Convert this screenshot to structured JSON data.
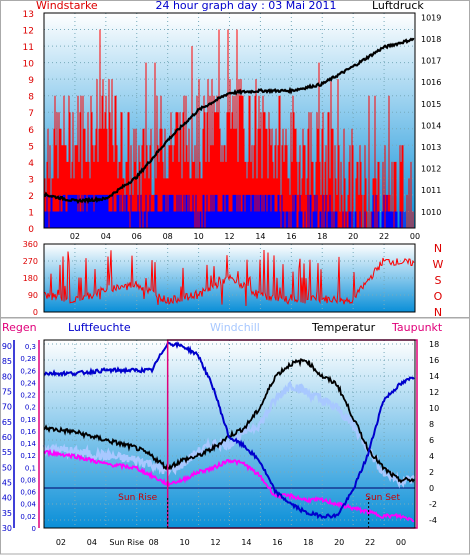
{
  "title": "24 hour graph day : 03 Mai 2011",
  "colors": {
    "wind": "#ff0000",
    "gust": "#0000ff",
    "pressure": "#000000",
    "dir": "#ff0000",
    "humidity": "#0000cc",
    "windchill": "#a8c8ff",
    "temperature": "#000000",
    "dewpoint": "#ff00ff",
    "rain": "#0000cc",
    "frame": "#e0007a"
  },
  "x_ticks": [
    "02",
    "04",
    "06",
    "08",
    "10",
    "12",
    "14",
    "16",
    "18",
    "20",
    "22",
    "00"
  ],
  "chart_data": [
    {
      "type": "line",
      "panel": "wind-pressure",
      "title": "24 hour graph day : 03 Mai 2011",
      "ylabel_left": "Windstarke",
      "ylabel_right": "Luftdruck",
      "y_left_ticks": [
        "0",
        "1",
        "2",
        "3",
        "4",
        "5",
        "6",
        "7",
        "8",
        "9",
        "10",
        "11",
        "12",
        "13"
      ],
      "y_right_ticks": [
        "1010",
        "1011",
        "1012",
        "1013",
        "1014",
        "1015",
        "1016",
        "1017",
        "1018",
        "1019"
      ],
      "ylim_left": [
        0,
        13
      ],
      "ylim_right": [
        1009.25,
        1019.2
      ],
      "x": [
        0,
        2,
        4,
        6,
        8,
        10,
        12,
        14,
        16,
        18,
        20,
        22,
        24
      ],
      "series": [
        {
          "name": "",
          "axis": "right",
          "values": [
            1010.8,
            1010.5,
            1010.6,
            1011.6,
            1013.3,
            1014.7,
            1015.5,
            1015.6,
            1015.6,
            1015.9,
            1016.7,
            1017.6,
            1018.0
          ]
        },
        {
          "name": "",
          "axis": "left",
          "values": [
            4,
            5,
            6,
            3,
            5,
            5,
            6,
            5,
            4,
            4,
            2,
            2,
            1
          ]
        },
        {
          "name": "",
          "axis": "left",
          "values": [
            1,
            2,
            2,
            1,
            2,
            1,
            2,
            2,
            1,
            1,
            0,
            1,
            0
          ]
        }
      ]
    },
    {
      "type": "line",
      "panel": "wind-direction",
      "y_ticks": [
        "0",
        "90",
        "180",
        "270",
        "360"
      ],
      "ylim": [
        0,
        360
      ],
      "direction_labels": [
        "N",
        "W",
        "S",
        "O",
        "N"
      ],
      "x": [
        0,
        2,
        4,
        6,
        8,
        10,
        12,
        14,
        16,
        18,
        20,
        22,
        24
      ],
      "series": [
        {
          "name": "",
          "values": [
            90,
            60,
            120,
            150,
            60,
            90,
            180,
            90,
            60,
            70,
            60,
            270,
            260
          ]
        }
      ]
    },
    {
      "type": "line",
      "panel": "temp-humidity",
      "legend": [
        "Regen",
        "Luftfeuchte",
        "Windchill",
        "Temperatur",
        "Taupunkt"
      ],
      "y_rain_ticks": [
        "0",
        "0,02",
        "0,04",
        "0,06",
        "0,08",
        "0,1",
        "0,12",
        "0,14",
        "0,16",
        "0,18",
        "0,2",
        "0,22",
        "0,24",
        "0,26",
        "0,28",
        "0,3"
      ],
      "y_humidity_ticks": [
        "30",
        "35",
        "40",
        "45",
        "50",
        "55",
        "60",
        "65",
        "70",
        "75",
        "80",
        "85",
        "90"
      ],
      "y_temp_ticks": [
        "-4",
        "-2",
        "0",
        "2",
        "4",
        "6",
        "8",
        "10",
        "12",
        "14",
        "16",
        "18"
      ],
      "ylim_humidity": [
        30,
        92
      ],
      "ylim_temp": [
        -5,
        18.5
      ],
      "sun_rise_label": "Sun Rise",
      "sun_set_label": "Sun Set",
      "sun_rise_hour": 8,
      "sun_set_hour": 21,
      "x_tick_sunrise_label": "Sun Rise",
      "x": [
        0,
        2,
        4,
        6,
        7,
        8,
        9,
        10,
        11,
        12,
        13,
        14,
        15,
        16,
        17,
        18,
        19,
        20,
        21,
        22,
        23,
        24
      ],
      "series": [
        {
          "name": "Luftfeuchte",
          "values": [
            81,
            81,
            82,
            82,
            82,
            91,
            90,
            87,
            76,
            60,
            57,
            52,
            42,
            38,
            35,
            34,
            34,
            42,
            54,
            72,
            77,
            80
          ]
        },
        {
          "name": "Windchill",
          "values": [
            5.0,
            4.5,
            4.0,
            3.5,
            3.0,
            2.0,
            3.0,
            4.5,
            5.5,
            5.5,
            7.0,
            8.0,
            11.0,
            13.0,
            12.0,
            11.0,
            10.0,
            8.0,
            5.0,
            2.0,
            1.0,
            1.0
          ]
        },
        {
          "name": "Temperatur",
          "values": [
            7.5,
            7.0,
            6.0,
            5.0,
            4.0,
            2.5,
            3.5,
            4.0,
            5.0,
            6.5,
            7.5,
            10.0,
            14.0,
            15.5,
            16.0,
            14.0,
            13.0,
            9.0,
            5.0,
            2.5,
            1.0,
            1.0
          ]
        },
        {
          "name": "Taupunkt",
          "values": [
            4.5,
            4.0,
            3.0,
            2.5,
            1.5,
            0.5,
            1.0,
            2.0,
            2.5,
            3.5,
            3.0,
            1.5,
            -1.0,
            -1.0,
            -1.5,
            -1.5,
            -2.0,
            -2.5,
            -3.0,
            -3.5,
            -3.5,
            -4.0
          ]
        },
        {
          "name": "Regen",
          "values": [
            0,
            0,
            0,
            0,
            0,
            0,
            0,
            0,
            0,
            0,
            0,
            0,
            0,
            0,
            0,
            0,
            0,
            0,
            0,
            0,
            0,
            0
          ]
        }
      ]
    }
  ]
}
